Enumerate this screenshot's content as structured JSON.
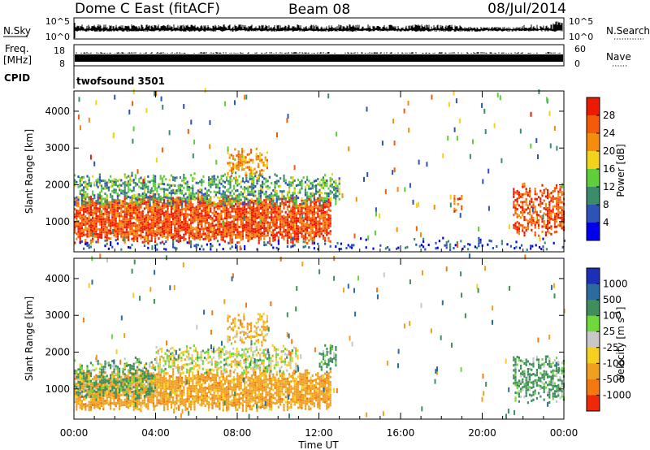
{
  "header": {
    "station": "Dome C East (fitACF)",
    "beam": "Beam 08",
    "date": "08/Jul/2014"
  },
  "params": {
    "nsky_label": "N.Sky",
    "nsky_top": "10^5",
    "nsky_bottom": "10^0",
    "nsearch_label": "N.Search",
    "nsearch_top": "10^5",
    "nsearch_bottom": "10^0",
    "freq_label": "Freq.",
    "freq_unit": "[MHz]",
    "freq_top": "18",
    "freq_bottom": "8",
    "nave_label": "Nave",
    "nave_top": "60",
    "nave_bottom": "0",
    "cpid_label": "CPID",
    "cpid_value": "twofsound 3501"
  },
  "chart_data": [
    {
      "type": "heatmap",
      "quantity": "Power",
      "ylabel": "Slant Range [km]",
      "xlabel": "Time UT",
      "x_ticks": [
        "00:00",
        "04:00",
        "08:00",
        "12:00",
        "16:00",
        "20:00",
        "00:00"
      ],
      "x_range_hours": [
        0,
        24
      ],
      "y_ticks": [
        1000,
        2000,
        3000,
        4000
      ],
      "y_range_km": [
        180,
        4550
      ],
      "colorbar": {
        "label": "Power [dB]",
        "ticks": [
          "4",
          "8",
          "12",
          "16",
          "20",
          "24",
          "28"
        ],
        "range": [
          0,
          33
        ],
        "colors": [
          "#0000ee",
          "#2d52b8",
          "#3a8c6b",
          "#5ecf3a",
          "#f2d21a",
          "#f48c0c",
          "#f45a0a",
          "#ee1a00"
        ]
      },
      "regions": [
        {
          "t": [
            0.0,
            12.6
          ],
          "r": [
            500,
            1600
          ],
          "level": 28,
          "note": "main echo band"
        },
        {
          "t": [
            0.0,
            13.0
          ],
          "r": [
            1500,
            2200
          ],
          "level": 12
        },
        {
          "t": [
            7.5,
            9.5
          ],
          "r": [
            2300,
            2900
          ],
          "level": 22
        },
        {
          "t": [
            18.6,
            19.0
          ],
          "r": [
            1300,
            1700
          ],
          "level": 26
        },
        {
          "t": [
            21.5,
            24.0
          ],
          "r": [
            700,
            1900
          ],
          "level": 28
        },
        {
          "t": [
            0.0,
            24.0
          ],
          "r": [
            180,
            400
          ],
          "level": 6,
          "note": "near-range noise"
        }
      ]
    },
    {
      "type": "heatmap",
      "quantity": "Velocity",
      "ylabel": "Slant Range [km]",
      "xlabel": "Time UT",
      "x_ticks": [
        "00:00",
        "04:00",
        "08:00",
        "12:00",
        "16:00",
        "20:00",
        "00:00"
      ],
      "x_range_hours": [
        0,
        24
      ],
      "y_ticks": [
        1000,
        2000,
        3000,
        4000
      ],
      "y_range_km": [
        180,
        4550
      ],
      "colorbar": {
        "label": "Velocity [m s-1]",
        "ticks": [
          "1000",
          "500",
          "100",
          "25",
          "-25",
          "-100",
          "-500",
          "-1000"
        ],
        "colors": [
          "#1c2fb8",
          "#2d6aa0",
          "#3f8e5c",
          "#6fd83a",
          "#c8c8c8",
          "#f5d020",
          "#f0a020",
          "#f47a10",
          "#f0280a"
        ]
      },
      "regions": [
        {
          "t": [
            0.0,
            12.6
          ],
          "r": [
            500,
            1400
          ],
          "value": -300,
          "note": "main band, away"
        },
        {
          "t": [
            0.0,
            4.0
          ],
          "r": [
            800,
            1700
          ],
          "value": 150
        },
        {
          "t": [
            4.0,
            11.0
          ],
          "r": [
            1500,
            2100
          ],
          "value": 0
        },
        {
          "t": [
            12.0,
            12.8
          ],
          "r": [
            1500,
            2100
          ],
          "value": 200
        },
        {
          "t": [
            7.5,
            9.5
          ],
          "r": [
            2300,
            2900
          ],
          "value": -200
        },
        {
          "t": [
            21.5,
            24.0
          ],
          "r": [
            700,
            1800
          ],
          "value": 200
        }
      ]
    }
  ]
}
